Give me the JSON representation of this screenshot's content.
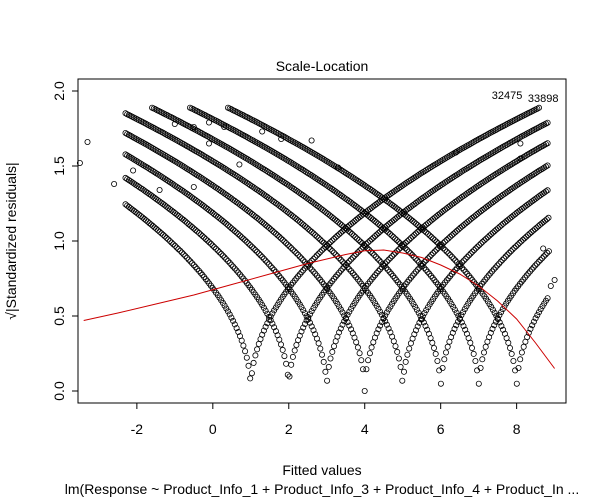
{
  "chart_data": {
    "type": "scatter",
    "title": "Scale-Location",
    "xlabel": "Fitted values",
    "ylabel": "√|Standardized residuals|",
    "subtitle": "lm(Response ~ Product_Info_1 + Product_Info_3 + Product_Info_4 + Product_In ...",
    "xlim": [
      -3.55,
      9.3
    ],
    "ylim": [
      -0.08,
      2.08
    ],
    "x_ticks": [
      -2,
      0,
      2,
      4,
      6,
      8
    ],
    "y_ticks": [
      0.0,
      0.5,
      1.0,
      1.5,
      2.0
    ],
    "x_tick_labels": [
      "-2",
      "0",
      "2",
      "4",
      "6",
      "8"
    ],
    "y_tick_labels": [
      "0.0",
      "0.5",
      "1.0",
      "1.5",
      "2.0"
    ],
    "grid": false,
    "point_color": "#000000",
    "smooth_color": "#cc0000",
    "point_labels": [
      {
        "text": "32475",
        "x": 7.75,
        "y": 1.98
      },
      {
        "text": "33898",
        "x": 8.7,
        "y": 1.96
      }
    ],
    "response_levels": [
      1,
      2,
      3,
      4,
      5,
      6,
      7,
      8
    ],
    "smooth_line": {
      "x": [
        -3.4,
        -2.5,
        -1.5,
        -0.5,
        0.5,
        1.5,
        2.5,
        3.5,
        4.0,
        4.5,
        5.0,
        5.5,
        6.0,
        6.5,
        7.0,
        7.5,
        8.0,
        8.5,
        9.0
      ],
      "y": [
        0.47,
        0.52,
        0.58,
        0.64,
        0.71,
        0.78,
        0.85,
        0.91,
        0.935,
        0.94,
        0.92,
        0.89,
        0.84,
        0.78,
        0.7,
        0.6,
        0.48,
        0.32,
        0.15
      ]
    },
    "outlier_points": [
      {
        "x": -3.5,
        "y": 1.52
      },
      {
        "x": -3.3,
        "y": 1.66
      },
      {
        "x": -2.6,
        "y": 1.38
      },
      {
        "x": -2.1,
        "y": 1.47
      },
      {
        "x": -1.4,
        "y": 1.34
      },
      {
        "x": -1.0,
        "y": 1.78
      },
      {
        "x": -0.5,
        "y": 1.76
      },
      {
        "x": -0.5,
        "y": 1.36
      },
      {
        "x": -0.1,
        "y": 1.79
      },
      {
        "x": -0.1,
        "y": 1.65
      },
      {
        "x": 0.3,
        "y": 1.76
      },
      {
        "x": 0.7,
        "y": 1.51
      },
      {
        "x": 1.3,
        "y": 1.73
      },
      {
        "x": 1.8,
        "y": 1.68
      },
      {
        "x": 2.6,
        "y": 1.67
      },
      {
        "x": 3.3,
        "y": 1.49
      },
      {
        "x": 6.4,
        "y": 1.59
      },
      {
        "x": 8.1,
        "y": 1.55
      },
      {
        "x": 8.1,
        "y": 1.65
      },
      {
        "x": 8.7,
        "y": 0.95
      },
      {
        "x": 9.0,
        "y": 0.74
      },
      {
        "x": 8.9,
        "y": 0.7
      }
    ]
  }
}
